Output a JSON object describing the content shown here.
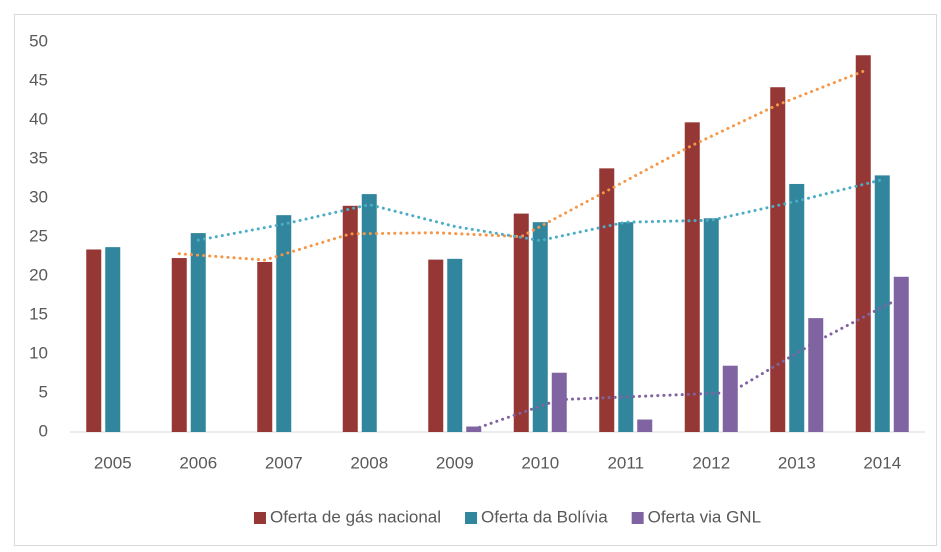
{
  "chart_data": {
    "type": "bar",
    "categories": [
      "2005",
      "2006",
      "2007",
      "2008",
      "2009",
      "2010",
      "2011",
      "2012",
      "2013",
      "2014"
    ],
    "series": [
      {
        "name": "Oferta de gás nacional",
        "color": "#953735",
        "values": [
          23.4,
          22.3,
          21.8,
          29.0,
          22.1,
          28.0,
          33.8,
          39.7,
          44.2,
          48.3
        ]
      },
      {
        "name": "Oferta da Bolívia",
        "color": "#31859c",
        "values": [
          23.7,
          25.5,
          27.8,
          30.5,
          22.2,
          26.9,
          26.9,
          27.4,
          31.8,
          32.9
        ]
      },
      {
        "name": "Oferta via GNL",
        "color": "#8064a2",
        "values": [
          null,
          null,
          null,
          null,
          0.7,
          7.6,
          1.6,
          8.5,
          14.6,
          19.9
        ]
      }
    ],
    "trendlines": [
      {
        "color": "#f79646",
        "values": [
          null,
          22.85,
          22.05,
          25.4,
          25.55,
          25.05,
          30.9,
          36.75,
          41.95,
          46.25
        ]
      },
      {
        "color": "#4bacc6",
        "values": [
          null,
          24.6,
          26.65,
          29.15,
          26.35,
          24.55,
          26.9,
          27.15,
          29.6,
          32.35
        ]
      },
      {
        "color": "#8064a2",
        "values": [
          null,
          null,
          null,
          null,
          0.35,
          4.15,
          4.6,
          5.05,
          11.55,
          17.25
        ]
      }
    ],
    "ylim": [
      0,
      50
    ],
    "yticks": [
      0,
      5,
      10,
      15,
      20,
      25,
      30,
      35,
      40,
      45,
      50
    ],
    "grid": false,
    "legend": "bottom"
  }
}
